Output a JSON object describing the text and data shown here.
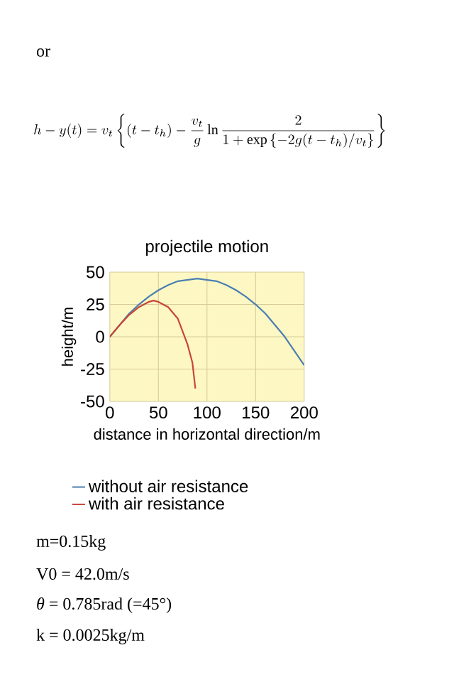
{
  "chart_data": {
    "type": "line",
    "title": "projectile motion",
    "xlabel": "distance in horizontal direction/m",
    "ylabel": "height/m",
    "xlim": [
      0,
      200
    ],
    "xticks": [
      0,
      50,
      100,
      150,
      200
    ],
    "ylim": [
      -50,
      50
    ],
    "yticks": [
      -50,
      -25,
      0,
      25,
      50
    ],
    "grid": true,
    "legend": "bottom",
    "series": [
      {
        "name": "without air resistance",
        "color": "#4a7fb0",
        "x": [
          0,
          10,
          20,
          30,
          40,
          50,
          60,
          70,
          80,
          90,
          100,
          110,
          120,
          130,
          140,
          150,
          160,
          170,
          180,
          190,
          200
        ],
        "values": [
          0,
          9,
          18,
          25,
          31,
          36,
          40,
          43,
          44,
          45,
          44,
          43,
          40,
          36,
          31,
          25,
          18,
          9,
          0,
          -11,
          -22
        ]
      },
      {
        "name": "with air resistance",
        "color": "#c8463a",
        "x": [
          0,
          10,
          20,
          30,
          40,
          45,
          50,
          60,
          70,
          80,
          85,
          88
        ],
        "values": [
          0,
          9,
          17,
          23,
          27,
          28,
          27,
          23,
          14,
          -6,
          -20,
          -40
        ]
      }
    ],
    "annotations": [
      "or",
      "h-y(t)=v_t\\left\\{(t-t_h)-\\frac{v_t}{g}\\ln\\frac{2}{1+\\exp\\left\\{-2g(t-t_h)/v_t\\right\\}}\\right\\}",
      "m=0.15kg",
      "V0 = 42.0m/s",
      "*θ* = 0.785rad (=45°)",
      "k = 0.0025kg/m"
    ]
  }
}
